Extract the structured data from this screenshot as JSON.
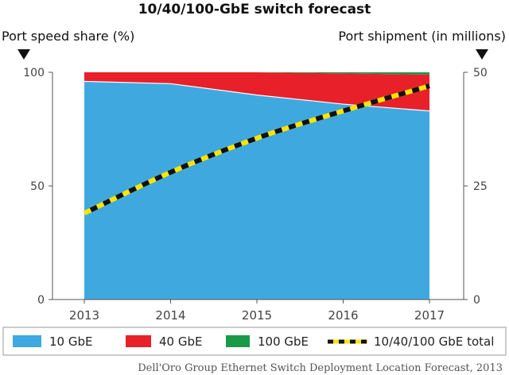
{
  "title": "10/40/100-GbE switch forecast",
  "left_axis_title": "Port speed share (%)",
  "right_axis_title": "Port shipment (in millions)",
  "source": "Dell'Oro Group Ethernet Switch Deployment Location Forecast, 2013",
  "colors": {
    "gbe10": "#3fa9df",
    "gbe40": "#e8202a",
    "gbe100": "#1a9a48",
    "total_line": "#ffe400",
    "total_dash": "#111111",
    "axis": "#555555"
  },
  "chart_data": {
    "type": "area",
    "categories": [
      "2013",
      "2014",
      "2015",
      "2016",
      "2017"
    ],
    "x": [
      2013,
      2014,
      2015,
      2016,
      2017
    ],
    "left_axis": {
      "ylim": [
        0,
        100
      ],
      "ticks": [
        0,
        50,
        100
      ]
    },
    "right_axis": {
      "ylim": [
        0,
        50
      ],
      "ticks": [
        0,
        25,
        50
      ]
    },
    "series": [
      {
        "name": "10 GbE",
        "axis": "left",
        "kind": "stacked-area",
        "values": [
          96,
          95,
          90,
          86,
          83
        ]
      },
      {
        "name": "40 GbE",
        "axis": "left",
        "kind": "stacked-area",
        "values": [
          4,
          5,
          10,
          13.5,
          16
        ]
      },
      {
        "name": "100 GbE",
        "axis": "left",
        "kind": "stacked-area",
        "values": [
          0,
          0,
          0,
          0.5,
          1
        ]
      },
      {
        "name": "10/40/100 GbE total",
        "axis": "right",
        "kind": "dashed-line",
        "values": [
          19,
          28,
          35.5,
          41.5,
          47
        ]
      }
    ],
    "legend_position": "bottom",
    "grid": false
  }
}
